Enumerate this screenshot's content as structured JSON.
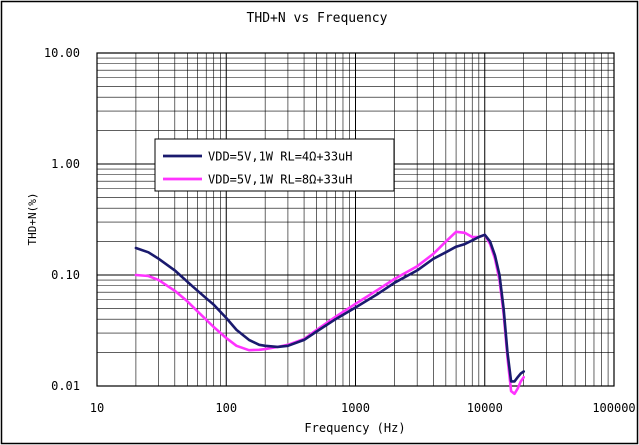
{
  "chart_data": {
    "type": "line",
    "title": "THD+N vs Frequency",
    "xlabel": "Frequency (Hz)",
    "ylabel": "THD+N(%)",
    "x_scale": "log",
    "y_scale": "log",
    "xlim": [
      10,
      100000
    ],
    "ylim": [
      0.01,
      10
    ],
    "x_ticks": [
      "10",
      "100",
      "1000",
      "10000",
      "100000"
    ],
    "y_ticks": [
      "10.00",
      "1.00",
      "0.10",
      "0.01"
    ],
    "grid": true,
    "legend_position": "upper-left",
    "series": [
      {
        "name": "VDD=5V,1W RL=4Ω+33uH",
        "color": "#1a1a6e",
        "x": [
          20,
          25,
          30,
          40,
          50,
          60,
          80,
          100,
          120,
          150,
          180,
          200,
          250,
          300,
          400,
          500,
          700,
          1000,
          1500,
          2000,
          3000,
          4000,
          5000,
          6000,
          7000,
          8000,
          9000,
          10000,
          11000,
          12000,
          13000,
          14000,
          15000,
          16000,
          17000,
          18000,
          19000,
          20000
        ],
        "y": [
          0.175,
          0.16,
          0.14,
          0.11,
          0.087,
          0.072,
          0.054,
          0.041,
          0.032,
          0.026,
          0.0235,
          0.023,
          0.0225,
          0.023,
          0.026,
          0.031,
          0.04,
          0.051,
          0.068,
          0.085,
          0.11,
          0.14,
          0.16,
          0.18,
          0.19,
          0.205,
          0.22,
          0.23,
          0.2,
          0.15,
          0.1,
          0.05,
          0.02,
          0.011,
          0.011,
          0.012,
          0.013,
          0.0135
        ]
      },
      {
        "name": "VDD=5V,1W RL=8Ω+33uH",
        "color": "#ff33ff",
        "x": [
          20,
          25,
          30,
          40,
          50,
          60,
          80,
          100,
          120,
          150,
          180,
          200,
          250,
          300,
          400,
          500,
          700,
          1000,
          1500,
          2000,
          3000,
          4000,
          5000,
          6000,
          7000,
          8000,
          9000,
          10000,
          11000,
          12000,
          13000,
          14000,
          15000,
          16000,
          17000,
          18000,
          19000,
          20000
        ],
        "y": [
          0.1,
          0.098,
          0.09,
          0.072,
          0.058,
          0.047,
          0.034,
          0.027,
          0.023,
          0.021,
          0.0212,
          0.0215,
          0.0225,
          0.0235,
          0.0265,
          0.032,
          0.042,
          0.055,
          0.074,
          0.092,
          0.12,
          0.155,
          0.2,
          0.245,
          0.24,
          0.22,
          0.22,
          0.23,
          0.19,
          0.14,
          0.09,
          0.045,
          0.018,
          0.009,
          0.0085,
          0.0095,
          0.011,
          0.012
        ]
      }
    ]
  }
}
